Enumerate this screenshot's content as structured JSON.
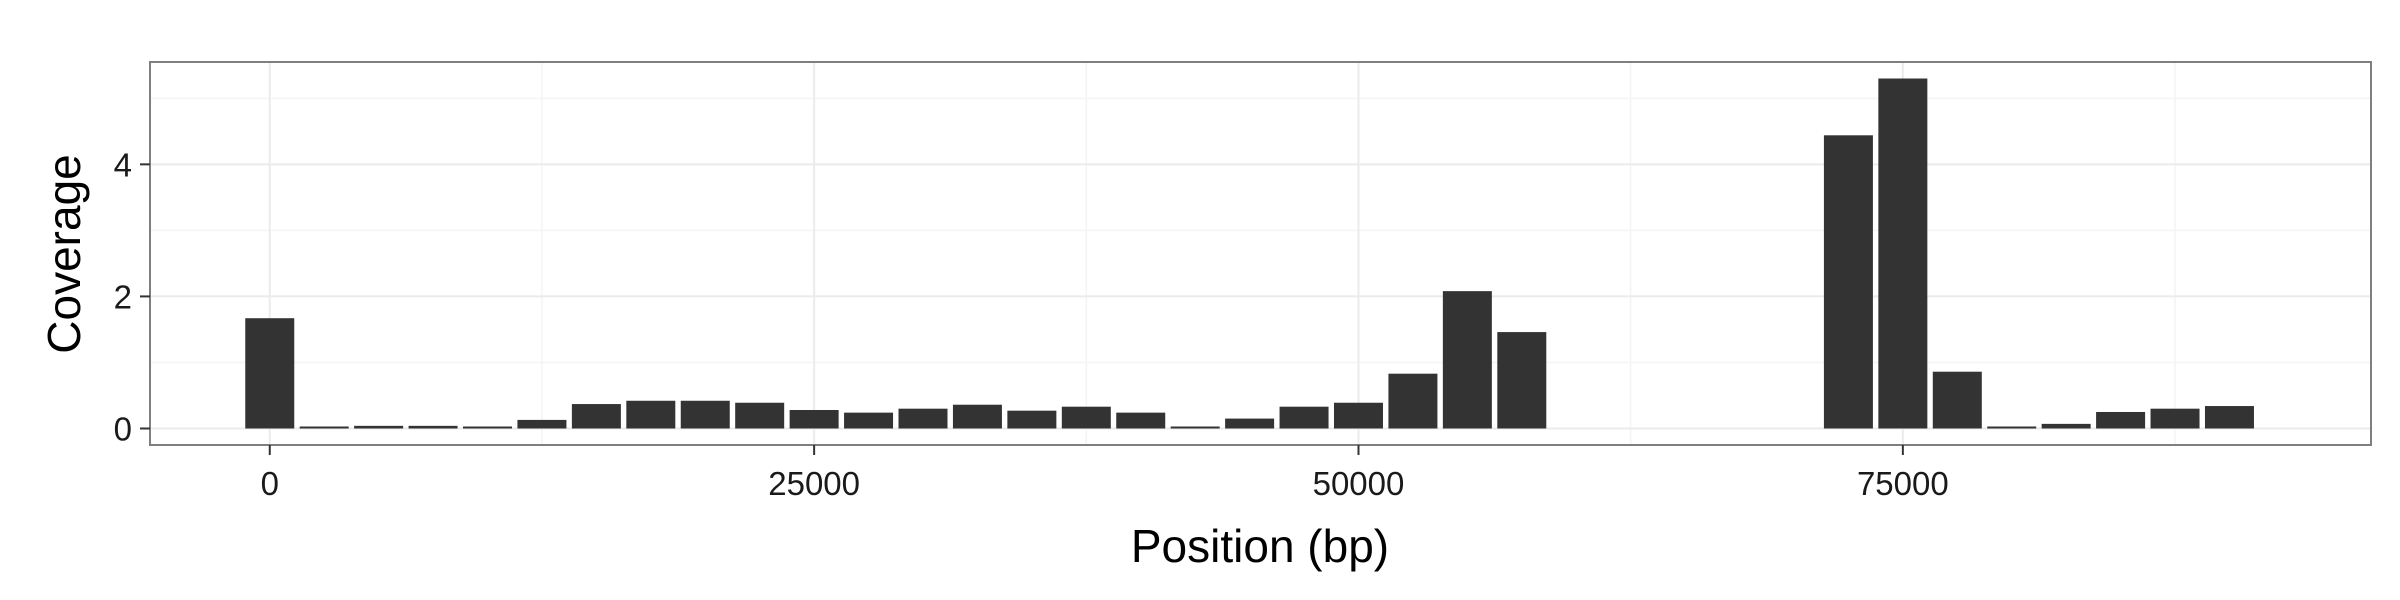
{
  "chart_data": {
    "type": "bar",
    "title": "",
    "xlabel": "Position (bp)",
    "ylabel": "Coverage",
    "xlim": [
      -5500,
      96500
    ],
    "ylim": [
      -0.25,
      5.55
    ],
    "x_ticks": [
      0,
      25000,
      50000,
      75000
    ],
    "x_tick_labels": [
      "0",
      "25000",
      "50000",
      "75000"
    ],
    "y_ticks": [
      0,
      2,
      4
    ],
    "y_tick_labels": [
      "0",
      "2",
      "4"
    ],
    "bin_width": 2500,
    "grid": true,
    "bar_color": "#333333",
    "x": [
      0,
      2500,
      5000,
      7500,
      10000,
      12500,
      15000,
      17500,
      20000,
      22500,
      25000,
      27500,
      30000,
      32500,
      35000,
      37500,
      40000,
      42500,
      45000,
      47500,
      50000,
      52500,
      55000,
      57500,
      72500,
      75000,
      77500,
      80000,
      82500,
      85000,
      87500,
      90000
    ],
    "values": [
      1.67,
      0.03,
      0.04,
      0.04,
      0.03,
      0.13,
      0.37,
      0.42,
      0.42,
      0.39,
      0.28,
      0.24,
      0.3,
      0.36,
      0.27,
      0.33,
      0.24,
      0.03,
      0.15,
      0.33,
      0.39,
      0.83,
      2.08,
      1.46,
      4.44,
      5.3,
      0.86,
      0.03,
      0.07,
      0.25,
      0.3,
      0.34
    ]
  },
  "colors": {
    "background": "#ffffff",
    "panel_border": "#7f7f7f",
    "grid_major": "#ebebeb",
    "grid_minor": "#f4f4f4",
    "bar": "#333333"
  }
}
